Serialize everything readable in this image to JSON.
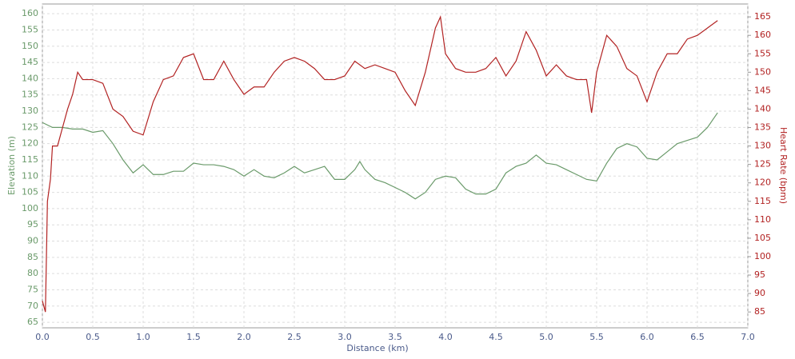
{
  "chart_data": {
    "type": "line",
    "xlabel": "Distance (km)",
    "ylabel": "Elevation (m)",
    "y2label": "Heart Rate (bpm)",
    "xlim": [
      0,
      7
    ],
    "ylim": [
      63.3,
      163
    ],
    "y2lim": [
      80.7,
      168.5
    ],
    "xticks": [
      {
        "value": 0,
        "label": "0.0"
      },
      0.5,
      {
        "value": 1,
        "label": "1.0"
      },
      1.5,
      {
        "value": 2,
        "label": "2.0"
      },
      2.5,
      {
        "value": 3,
        "label": "3.0"
      },
      3.5,
      {
        "value": 4,
        "label": "4.0"
      },
      4.5,
      {
        "value": 5,
        "label": "5.0"
      },
      5.5,
      {
        "value": 6,
        "label": "6.0"
      },
      6.5,
      {
        "value": 7,
        "label": "7.0"
      }
    ],
    "yticks": [
      65,
      70,
      75,
      80,
      85,
      90,
      95,
      100,
      105,
      110,
      115,
      120,
      125,
      130,
      135,
      140,
      145,
      150,
      155,
      160
    ],
    "y2ticks": [
      85,
      90,
      95,
      100,
      105,
      110,
      115,
      120,
      125,
      130,
      135,
      140,
      145,
      150,
      155,
      160,
      165
    ],
    "grid": true,
    "series": [
      {
        "name": "Elevation",
        "color": "#6a9a6a",
        "axis": "y",
        "x": [
          0,
          0.1,
          0.2,
          0.3,
          0.4,
          0.5,
          0.6,
          0.7,
          0.8,
          0.9,
          1.0,
          1.1,
          1.2,
          1.3,
          1.4,
          1.5,
          1.6,
          1.7,
          1.8,
          1.9,
          2.0,
          2.1,
          2.2,
          2.3,
          2.4,
          2.5,
          2.6,
          2.7,
          2.8,
          2.9,
          3.0,
          3.1,
          3.15,
          3.2,
          3.3,
          3.4,
          3.5,
          3.6,
          3.7,
          3.8,
          3.9,
          4.0,
          4.1,
          4.2,
          4.3,
          4.4,
          4.5,
          4.6,
          4.7,
          4.8,
          4.9,
          5.0,
          5.1,
          5.2,
          5.3,
          5.4,
          5.5,
          5.6,
          5.7,
          5.8,
          5.9,
          6.0,
          6.1,
          6.2,
          6.3,
          6.4,
          6.5,
          6.6,
          6.7
        ],
        "values": [
          126.5,
          125,
          125,
          124.5,
          124.5,
          123.5,
          124,
          120,
          115,
          111,
          113.5,
          110.5,
          110.5,
          111.5,
          111.5,
          114,
          113.5,
          113.5,
          113,
          112,
          110,
          112,
          110,
          109.5,
          111,
          113,
          111,
          112,
          113,
          109,
          109,
          112,
          114.5,
          112,
          109,
          108,
          106.5,
          105,
          103,
          105,
          109,
          110,
          109.5,
          106,
          104.5,
          104.5,
          106,
          111,
          113,
          114,
          116.5,
          114,
          113.5,
          112,
          110.5,
          109,
          108.5,
          114,
          118.5,
          120,
          119,
          115.5,
          115,
          117.5,
          120,
          121,
          122,
          125,
          129.5
        ]
      },
      {
        "name": "Heart Rate",
        "color": "#b22222",
        "axis": "y2",
        "x": [
          0,
          0.03,
          0.05,
          0.08,
          0.1,
          0.15,
          0.2,
          0.25,
          0.3,
          0.35,
          0.4,
          0.5,
          0.6,
          0.7,
          0.8,
          0.9,
          1.0,
          1.1,
          1.2,
          1.3,
          1.4,
          1.5,
          1.6,
          1.7,
          1.8,
          1.9,
          2.0,
          2.1,
          2.2,
          2.3,
          2.4,
          2.5,
          2.6,
          2.7,
          2.8,
          2.9,
          3.0,
          3.1,
          3.2,
          3.3,
          3.4,
          3.5,
          3.6,
          3.7,
          3.8,
          3.9,
          3.95,
          4.0,
          4.1,
          4.2,
          4.3,
          4.4,
          4.5,
          4.6,
          4.7,
          4.8,
          4.9,
          5.0,
          5.1,
          5.2,
          5.3,
          5.4,
          5.45,
          5.5,
          5.6,
          5.7,
          5.8,
          5.9,
          6.0,
          6.1,
          6.2,
          6.3,
          6.4,
          6.5,
          6.6,
          6.7
        ],
        "values": [
          88,
          85,
          115,
          121,
          130,
          130,
          135,
          140,
          144,
          150,
          148,
          148,
          147,
          140,
          138,
          134,
          133,
          142,
          148,
          149,
          154,
          155,
          148,
          148,
          153,
          148,
          144,
          146,
          146,
          150,
          153,
          154,
          153,
          151,
          148,
          148,
          149,
          153,
          151,
          152,
          151,
          150,
          145,
          141,
          150,
          162,
          165,
          155,
          151,
          150,
          150,
          151,
          154,
          149,
          153,
          161,
          156,
          149,
          152,
          149,
          148,
          148,
          139,
          150,
          160,
          157,
          151,
          149,
          142,
          150,
          155,
          155,
          159,
          160,
          162,
          164
        ]
      }
    ]
  }
}
